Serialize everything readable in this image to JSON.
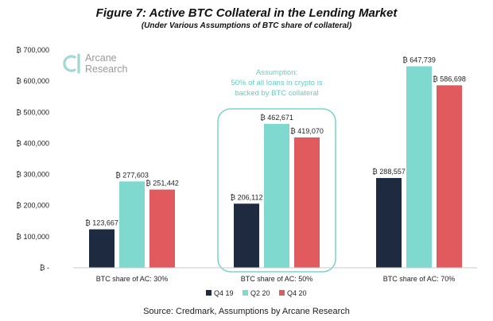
{
  "header": {
    "title": "Figure 7: Active BTC Collateral in the Lending Market",
    "subtitle": "(Under Various Assumptions of BTC share of collateral)"
  },
  "logo": {
    "line1": "Arcane",
    "line2": "Research",
    "icon": "arcane-logo-icon",
    "color": "#9fd9d3"
  },
  "annotation": {
    "lines": [
      "Assumption:",
      "50% of all loans in crypto is",
      "backed by BTC collateral"
    ],
    "color": "#5ecfc4",
    "box_category_index": 1
  },
  "source": "Source: Credmark, Assumptions by Arcane Research",
  "chart_data": {
    "type": "bar",
    "title": "Figure 7: Active BTC Collateral in the Lending Market",
    "subtitle": "(Under Various Assumptions of BTC share of collateral)",
    "categories": [
      "BTC share of AC: 30%",
      "BTC share of AC: 50%",
      "BTC share of AC: 70%"
    ],
    "series": [
      {
        "name": "Q4 19",
        "color": "#1d2a3f",
        "values": [
          123667,
          206112,
          288557
        ],
        "labels": [
          "₿ 123,667",
          "₿ 206,112",
          "₿ 288,557"
        ]
      },
      {
        "name": "Q2 20",
        "color": "#7fd9cf",
        "values": [
          277603,
          462671,
          647739
        ],
        "labels": [
          "₿ 277,603",
          "₿ 462,671",
          "₿ 647,739"
        ]
      },
      {
        "name": "Q4 20",
        "color": "#e05a5e",
        "values": [
          251442,
          419070,
          586698
        ],
        "labels": [
          "₿ 251,442",
          "₿ 419,070",
          "₿ 586,698"
        ]
      }
    ],
    "yticks": [
      0,
      100000,
      200000,
      300000,
      400000,
      500000,
      600000,
      700000
    ],
    "ytick_labels": [
      "₿ -",
      "₿ 100,000",
      "₿ 200,000",
      "₿ 300,000",
      "₿ 400,000",
      "₿ 500,000",
      "₿ 600,000",
      "₿ 700,000"
    ],
    "ylim": [
      0,
      700000
    ],
    "xlabel": "",
    "ylabel": "",
    "grid": false,
    "legend_position": "bottom"
  }
}
